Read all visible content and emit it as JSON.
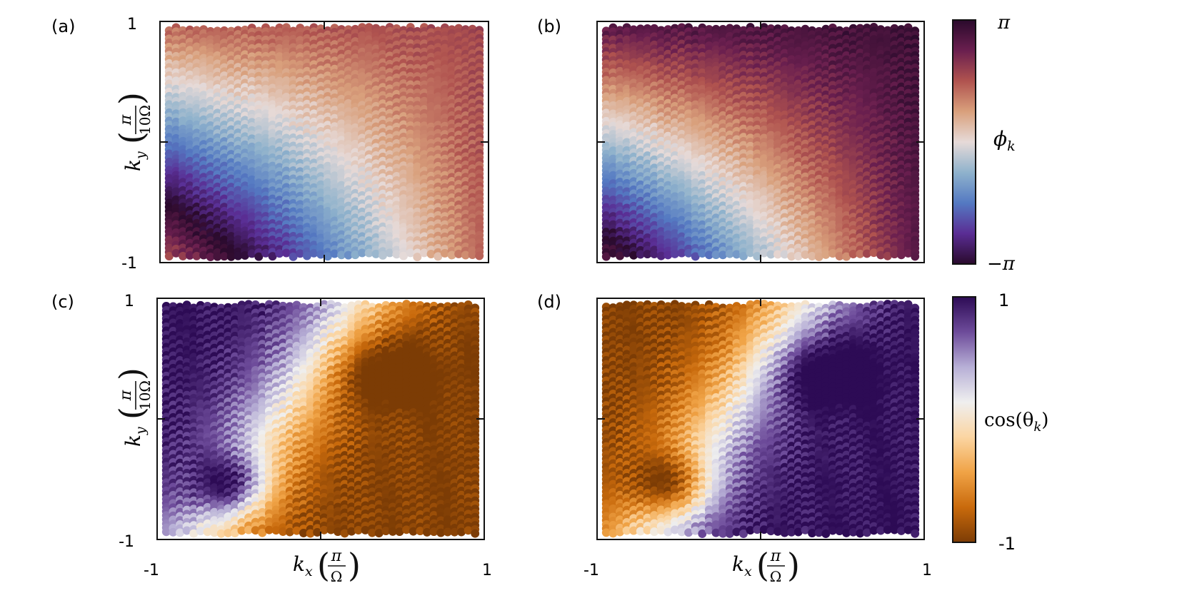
{
  "chart_data": [
    {
      "type": "heatmap",
      "panel_label": "(a)",
      "quantity": "phi",
      "xlim": [
        -1,
        1
      ],
      "ylim": [
        -1,
        1
      ],
      "ytick_labels": [
        "1",
        "-1"
      ],
      "ylabel": {
        "var": "k",
        "sub": "y",
        "num": "π",
        "den": "10Ω"
      },
      "pattern": {
        "offset": 0.0,
        "freq": 1.0,
        "tilt": 1.25
      }
    },
    {
      "type": "heatmap",
      "panel_label": "(b)",
      "quantity": "phi",
      "xlim": [
        -1,
        1
      ],
      "ylim": [
        -1,
        1
      ],
      "pattern": {
        "offset": 0.35,
        "freq": 1.05,
        "tilt": 1.3
      }
    },
    {
      "type": "heatmap",
      "panel_label": "(c)",
      "quantity": "cos_theta",
      "xlim": [
        -1,
        1
      ],
      "ylim": [
        -1,
        1
      ],
      "ytick_labels": [
        "1",
        "-1"
      ],
      "xtick_labels": [
        "-1",
        "1"
      ],
      "ylabel": {
        "var": "k",
        "sub": "y",
        "num": "π",
        "den": "10Ω"
      },
      "xlabel": {
        "var": "k",
        "sub": "x",
        "num": "π",
        "den": "Ω"
      },
      "pattern": {
        "sign": 1.0,
        "tilt": 1.2
      }
    },
    {
      "type": "heatmap",
      "panel_label": "(d)",
      "quantity": "cos_theta",
      "xlim": [
        -1,
        1
      ],
      "ylim": [
        -1,
        1
      ],
      "xtick_labels": [
        "-1",
        "1"
      ],
      "xlabel": {
        "var": "k",
        "sub": "x",
        "num": "π",
        "den": "Ω"
      },
      "pattern": {
        "sign": -1.0,
        "tilt": 1.2
      }
    }
  ],
  "colorbars": {
    "phi": {
      "label_sym": "ϕ",
      "label_sub": "k",
      "top": "π",
      "bottom": "−π",
      "colors": [
        "#2a0a2c",
        "#6a1f4f",
        "#b0534f",
        "#d9a07c",
        "#e6dad8",
        "#8fb2cc",
        "#5479c2",
        "#5a2d94",
        "#2a0a2c"
      ]
    },
    "cos_theta": {
      "label": "cos(θ",
      "label_sub": "k",
      "label_tail": ")",
      "top": "1",
      "bottom": "-1",
      "colors": [
        "#2d0b55",
        "#6d4b9a",
        "#b7afd6",
        "#efefef",
        "#fbd5a2",
        "#f0a346",
        "#c96a0c",
        "#7c3c05"
      ]
    }
  }
}
